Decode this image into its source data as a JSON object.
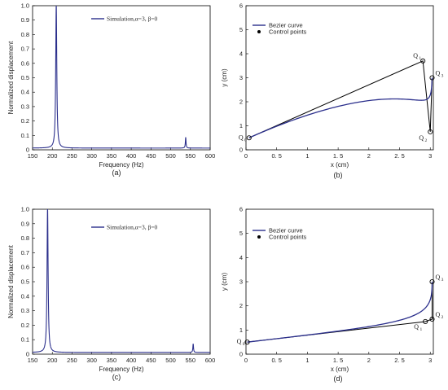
{
  "chart_data": [
    {
      "panel_label": "(a)",
      "type": "line",
      "xlabel": "Frequency (Hz)",
      "ylabel": "Normalized displacement",
      "xlim": [
        150,
        600
      ],
      "ylim": [
        0,
        1.0
      ],
      "xticks": [
        150,
        200,
        250,
        300,
        350,
        400,
        450,
        500,
        550,
        600
      ],
      "yticks": [
        0,
        0.1,
        0.2,
        0.3,
        0.4,
        0.5,
        0.6,
        0.7,
        0.8,
        0.9,
        1.0
      ],
      "ytick_labels": [
        "0",
        "0.1",
        "0.2",
        "0.3",
        "0.4",
        "0.5",
        "0.6",
        "0.7",
        "0.8",
        "0.9",
        "1.0"
      ],
      "legend_position": "top-right",
      "resonances": [
        {
          "f": 210,
          "amp": 1.0,
          "width": 1.6
        },
        {
          "f": 538,
          "amp": 0.075,
          "width": 1.0
        }
      ],
      "baseline": 0.012,
      "series": [
        {
          "name": "Simulation,α=3, β=0",
          "color": "#2b2f8c"
        }
      ]
    },
    {
      "panel_label": "(b)",
      "type": "line",
      "xlabel": "x (cm)",
      "ylabel": "y (cm)",
      "xlim": [
        0,
        3.05
      ],
      "ylim": [
        0,
        6
      ],
      "xticks": [
        0,
        0.5,
        1,
        1.5,
        2,
        2.5,
        3
      ],
      "xtick_labels": [
        "0",
        "0. 5",
        "1",
        "1. 5",
        "2",
        "2. 5",
        "3"
      ],
      "yticks": [
        0,
        1,
        2,
        3,
        4,
        5,
        6
      ],
      "legend_position": "top-left",
      "control_points": [
        {
          "label": "Q",
          "sub": "0",
          "x": 0.05,
          "y": 0.5
        },
        {
          "label": "Q",
          "sub": "1",
          "x": 2.88,
          "y": 3.7
        },
        {
          "label": "Q",
          "sub": "2",
          "x": 3.0,
          "y": 0.75
        },
        {
          "label": "Q",
          "sub": "3",
          "x": 3.03,
          "y": 3.0
        }
      ],
      "series": [
        {
          "name": "Bezier curve",
          "color": "#2b2f8c"
        },
        {
          "name": "Control points",
          "color": "#000000"
        }
      ]
    },
    {
      "panel_label": "(c)",
      "type": "line",
      "xlabel": "Frequency (Hz)",
      "ylabel": "Normalized displacement",
      "xlim": [
        150,
        600
      ],
      "ylim": [
        0,
        1.0
      ],
      "xticks": [
        150,
        200,
        250,
        300,
        350,
        400,
        450,
        500,
        550,
        600
      ],
      "yticks": [
        0,
        0.1,
        0.2,
        0.3,
        0.4,
        0.5,
        0.6,
        0.7,
        0.8,
        0.9,
        1.0
      ],
      "ytick_labels": [
        "0",
        "0.1",
        "0.2",
        "0.3",
        "0.4",
        "0.5",
        "0.6",
        "0.7",
        "0.8",
        "0.9",
        "1.0"
      ],
      "legend_position": "top-right",
      "resonances": [
        {
          "f": 188,
          "amp": 1.0,
          "width": 1.6
        },
        {
          "f": 557,
          "amp": 0.06,
          "width": 1.0
        }
      ],
      "baseline": 0.012,
      "series": [
        {
          "name": "Simulation,α=3, β=0",
          "color": "#2b2f8c"
        }
      ]
    },
    {
      "panel_label": "(d)",
      "type": "line",
      "xlabel": "x (cm)",
      "ylabel": "y (cm)",
      "xlim": [
        0,
        3.05
      ],
      "ylim": [
        0,
        6
      ],
      "xticks": [
        0,
        0.5,
        1,
        1.5,
        2,
        2.5,
        3
      ],
      "xtick_labels": [
        "0",
        "0. 5",
        "1",
        "1. 5",
        "2",
        "2. 5",
        "3"
      ],
      "yticks": [
        0,
        1,
        2,
        3,
        4,
        5,
        6
      ],
      "legend_position": "top-left",
      "control_points": [
        {
          "label": "Q",
          "sub": "0",
          "x": 0.02,
          "y": 0.5
        },
        {
          "label": "Q",
          "sub": "1",
          "x": 2.92,
          "y": 1.35
        },
        {
          "label": "Q",
          "sub": "2",
          "x": 3.03,
          "y": 1.45
        },
        {
          "label": "Q",
          "sub": "3",
          "x": 3.03,
          "y": 3.0
        }
      ],
      "series": [
        {
          "name": "Bezier curve",
          "color": "#2b2f8c"
        },
        {
          "name": "Control points",
          "color": "#000000"
        }
      ]
    }
  ]
}
